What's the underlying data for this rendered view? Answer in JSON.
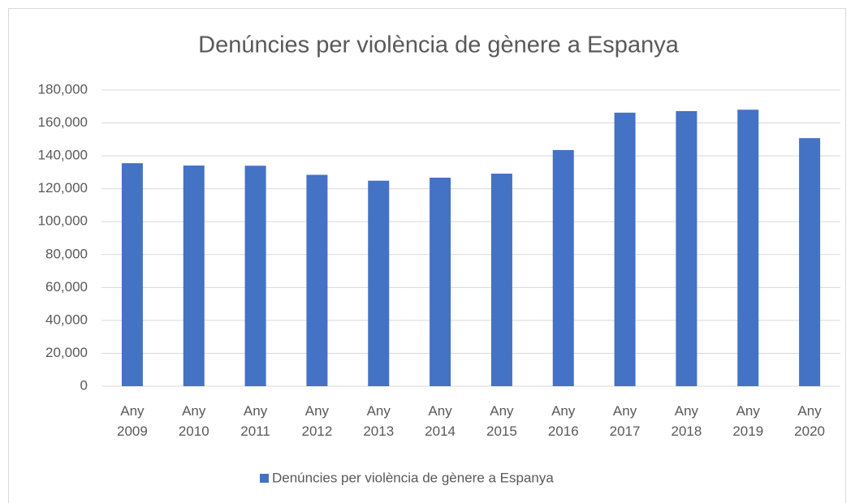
{
  "chart_data": {
    "type": "bar",
    "title": "Denúncies per violència de gènere a Espanya",
    "categories": [
      "Any 2009",
      "Any 2010",
      "Any 2011",
      "Any 2012",
      "Any 2013",
      "Any 2014",
      "Any 2015",
      "Any 2016",
      "Any 2017",
      "Any 2018",
      "Any 2019",
      "Any 2020"
    ],
    "series": [
      {
        "name": "Denúncies per violència de gènere a Espanya",
        "color": "#4472c4",
        "values": [
          135540,
          134105,
          134002,
          128477,
          124893,
          126742,
          129193,
          143535,
          166260,
          167212,
          168057,
          150785
        ]
      }
    ],
    "ylim": [
      0,
      180000
    ],
    "yticks": [
      0,
      {
        "value": 20000,
        "label": "20,000"
      },
      {
        "value": 40000,
        "label": "40,000"
      },
      {
        "value": 60000,
        "label": "60,000"
      },
      {
        "value": 80000,
        "label": "80,000"
      },
      {
        "value": 100000,
        "label": "100,000"
      },
      {
        "value": 120000,
        "label": "120,000"
      },
      {
        "value": 140000,
        "label": "140,000"
      },
      {
        "value": 160000,
        "label": "160,000"
      },
      {
        "value": 180000,
        "label": "180,000"
      }
    ],
    "grid": true,
    "legend": "bottom"
  }
}
